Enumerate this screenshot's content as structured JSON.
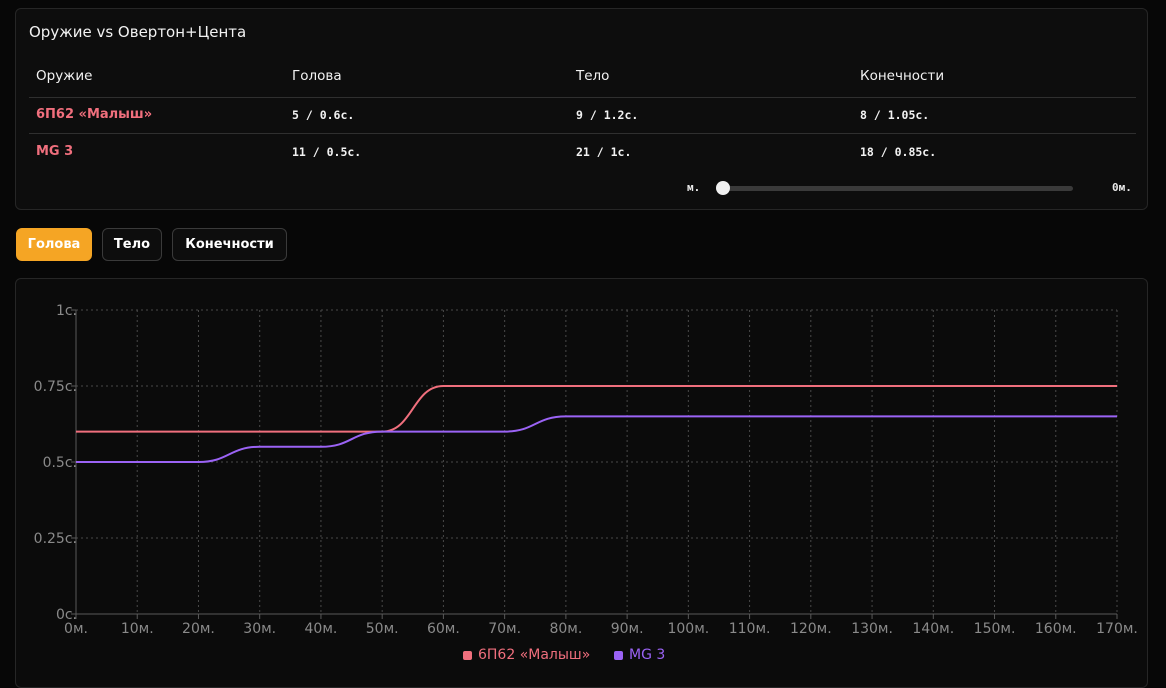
{
  "comparison": {
    "title": "Оружие vs Овертон+Цента",
    "headers": [
      "Оружие",
      "Голова",
      "Тело",
      "Конечности"
    ],
    "rows": [
      {
        "weapon": "6П62 «Малыш»",
        "head": "5 / 0.6с.",
        "body": "9 / 1.2с.",
        "limbs": "8 / 1.05с."
      },
      {
        "weapon": "MG 3",
        "head": "11 / 0.5с.",
        "body": "21 / 1с.",
        "limbs": "18 / 0.85с."
      }
    ],
    "slider": {
      "left_label": "м.",
      "right_label": "0м.",
      "value": 0
    }
  },
  "tabs": [
    {
      "label": "Голова",
      "active": true
    },
    {
      "label": "Тело",
      "active": false
    },
    {
      "label": "Конечности",
      "active": false
    }
  ],
  "chart_data": {
    "type": "line",
    "x": [
      0,
      10,
      20,
      30,
      40,
      50,
      60,
      70,
      80,
      90,
      100,
      110,
      120,
      130,
      140,
      150,
      160,
      170
    ],
    "x_tick_labels": [
      "0м.",
      "10м.",
      "20м.",
      "30м.",
      "40м.",
      "50м.",
      "60м.",
      "70м.",
      "80м.",
      "90м.",
      "100м.",
      "110м.",
      "120м.",
      "130м.",
      "140м.",
      "150м.",
      "160м.",
      "170м."
    ],
    "y_tick_labels": [
      "0с.",
      "0.25с.",
      "0.5с.",
      "0.75с.",
      "1с."
    ],
    "y_ticks": [
      0,
      0.25,
      0.5,
      0.75,
      1
    ],
    "xlim": [
      0,
      170
    ],
    "ylim": [
      0,
      1
    ],
    "grid": true,
    "legend_position": "bottom",
    "series": [
      {
        "name": "6П62 «Малыш»",
        "color": "#f06f7d",
        "values": [
          0.6,
          0.6,
          0.6,
          0.6,
          0.6,
          0.6,
          0.75,
          0.75,
          0.75,
          0.75,
          0.75,
          0.75,
          0.75,
          0.75,
          0.75,
          0.75,
          0.75,
          0.75
        ]
      },
      {
        "name": "MG 3",
        "color": "#9b63f5",
        "values": [
          0.5,
          0.5,
          0.5,
          0.55,
          0.55,
          0.6,
          0.6,
          0.6,
          0.65,
          0.65,
          0.65,
          0.65,
          0.65,
          0.65,
          0.65,
          0.65,
          0.65,
          0.65
        ]
      }
    ]
  }
}
